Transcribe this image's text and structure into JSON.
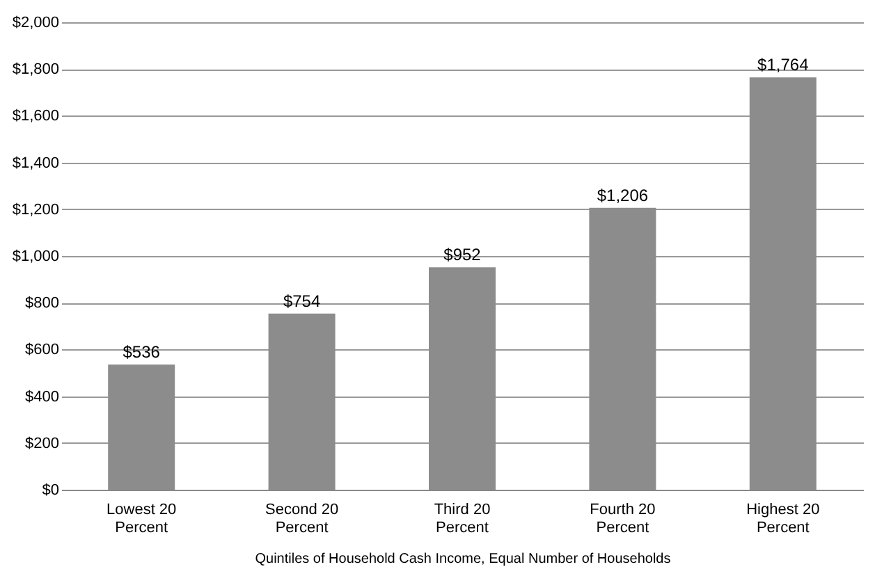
{
  "chart_data": {
    "type": "bar",
    "categories": [
      "Lowest 20 Percent",
      "Second 20 Percent",
      "Third 20 Percent",
      "Fourth 20 Percent",
      "Highest 20 Percent"
    ],
    "values": [
      536,
      754,
      952,
      1206,
      1764
    ],
    "value_labels": [
      "$536",
      "$754",
      "$952",
      "$1,206",
      "$1,764"
    ],
    "color": "#8c8c8c",
    "xlabel": "Quintiles of Household Cash Income, Equal Number of Households",
    "ylim": [
      0,
      2000
    ],
    "yticks": [
      {
        "value": 0,
        "label": "$0"
      },
      {
        "value": 200,
        "label": "$200"
      },
      {
        "value": 400,
        "label": "$400"
      },
      {
        "value": 600,
        "label": "$600"
      },
      {
        "value": 800,
        "label": "$800"
      },
      {
        "value": 1000,
        "label": "$1,000"
      },
      {
        "value": 1200,
        "label": "$1,200"
      },
      {
        "value": 1400,
        "label": "$1,400"
      },
      {
        "value": 1600,
        "label": "$1,600"
      },
      {
        "value": 1800,
        "label": "$1,800"
      },
      {
        "value": 2000,
        "label": "$2,000"
      }
    ],
    "grid": "y"
  }
}
